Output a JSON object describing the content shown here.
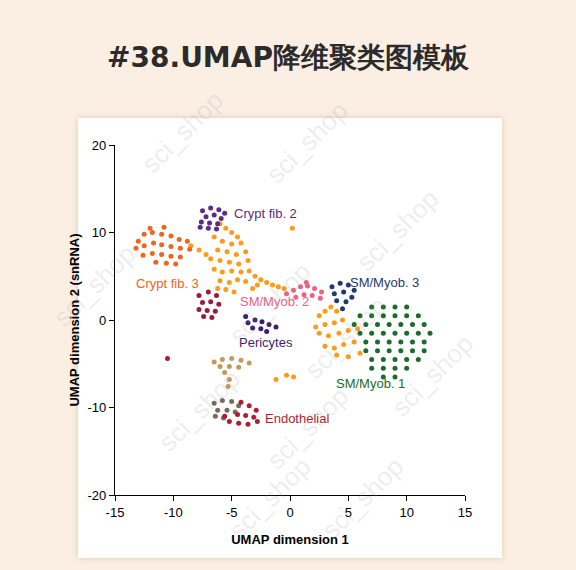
{
  "chart_data": {
    "type": "scatter",
    "title": "#38.UMAP降维聚类图模板",
    "watermark": "sci_shop",
    "x_label": "UMAP dimension 1",
    "y_label": "UMAP dimension 2 (snRNA)",
    "xlim": [
      -15,
      15
    ],
    "xticks": [
      -15,
      -10,
      -5,
      0,
      5,
      10,
      15
    ],
    "ylim": [
      -20,
      20
    ],
    "yticks": [
      -20,
      -10,
      0,
      10,
      20
    ],
    "grid": false,
    "marker": "circle",
    "series": [
      {
        "color": "#ff9a1a",
        "x": [
          -6,
          -5.5,
          -5,
          -4.5,
          -6.5,
          -5.8,
          -5,
          -4.2,
          -6.2,
          -5.4,
          -4.6,
          -3.8,
          -6.8,
          -6,
          -5.2,
          -4.4,
          -3.6,
          -8.5,
          -7.8,
          -7.2,
          -6.5,
          -5.8,
          -5,
          -4.2,
          -3.5,
          -6,
          -5.2,
          -4.5,
          -3.8,
          -3,
          -2.5,
          -2,
          -1.5,
          -1,
          -0.5,
          -5.5,
          -4.8,
          -6.2,
          -2.8,
          -3.2,
          2.5,
          3,
          3.5,
          4,
          3,
          3.8,
          4.5,
          2.5,
          3.3,
          4.2,
          5,
          3,
          3.8,
          4.6,
          5.5,
          4,
          5,
          6,
          2.2,
          5.8,
          -0.3,
          0.3,
          0.2,
          -1.2
        ],
        "y": [
          11,
          10.5,
          10,
          9.5,
          9.5,
          9,
          8.7,
          8.8,
          8,
          7.8,
          7.5,
          7.8,
          7,
          6.8,
          6.6,
          6.4,
          6.8,
          8.5,
          8,
          7.5,
          5.8,
          5.5,
          5.6,
          5.5,
          5.6,
          4.5,
          4.3,
          4.6,
          4.4,
          5,
          4.6,
          4.3,
          4,
          3.8,
          3.6,
          3.5,
          3.2,
          3.6,
          4,
          3.6,
          0.5,
          1,
          1.5,
          1,
          -0.5,
          -0.3,
          0,
          -1.5,
          -1.8,
          -1.5,
          -1.2,
          -3,
          -3.2,
          -2.8,
          -2.5,
          -4,
          -4.2,
          -3.8,
          -0.8,
          -1,
          -6.3,
          -6.5,
          10.5,
          -6.8
        ]
      },
      {
        "color": "#f0641e",
        "x": [
          -13,
          -12.5,
          -11.8,
          -11,
          -10.2,
          -9.5,
          -8.8,
          -13.2,
          -12.5,
          -11.7,
          -11,
          -10.2,
          -9.4,
          -8.6,
          -12.6,
          -11.8,
          -11,
          -10.2,
          -9.4,
          -11.5,
          -10.6,
          -9.8,
          -12,
          -10.8
        ],
        "y": [
          9,
          9.8,
          10,
          9.8,
          9.6,
          9.2,
          9,
          8.2,
          8.5,
          8.8,
          8.6,
          8.4,
          8.2,
          8.1,
          7.4,
          7.6,
          7.5,
          7.3,
          7.2,
          6.6,
          6.5,
          6.4,
          10.5,
          10.6
        ]
      },
      {
        "color": "#5b2c83",
        "x": [
          -7.5,
          -6.8,
          -6.1,
          -5.6,
          -7.2,
          -6.5,
          -5.9,
          -7.6,
          -6.9,
          -6.2,
          -7,
          -6.3,
          -7.7
        ],
        "y": [
          12.5,
          12.8,
          12.6,
          12.2,
          11.8,
          12,
          11.6,
          11.2,
          11.1,
          11,
          10.5,
          10.4,
          10.6
        ]
      },
      {
        "color": "#9e1a3a",
        "x": [
          -7.8,
          -7,
          -6.3,
          -7.5,
          -6.8,
          -6.1,
          -7.8,
          -7.1,
          -6.4,
          -7.4,
          -6.7
        ],
        "y": [
          2.8,
          3.2,
          2.8,
          2,
          2.1,
          1.8,
          1.2,
          1.1,
          1,
          0.4,
          0.3
        ]
      },
      {
        "color": "#f06080",
        "x": [
          -0.3,
          0.3,
          0.9,
          1.5,
          2.1,
          2.7,
          0.5,
          1.2,
          1.9,
          2.6,
          1.4
        ],
        "y": [
          3,
          3.4,
          3.8,
          3.9,
          3.6,
          3.2,
          2.6,
          2.9,
          2.8,
          2.5,
          4.3
        ]
      },
      {
        "color": "#1f3a6e",
        "x": [
          3.6,
          4.3,
          5,
          5.5,
          3.8,
          4.6,
          5.3,
          4,
          4.8,
          4.5
        ],
        "y": [
          3.8,
          4.2,
          4,
          3.4,
          3,
          3.2,
          2.6,
          2.2,
          2.1,
          1.3
        ]
      },
      {
        "color": "#1b6b2a",
        "x": [
          7,
          8,
          9,
          10,
          6,
          7,
          8,
          9,
          10,
          11,
          5.5,
          6.5,
          7.5,
          8.5,
          9.5,
          10.5,
          11.5,
          6,
          7,
          8,
          9,
          10,
          11,
          12,
          6.5,
          7.5,
          8.5,
          9.5,
          10.5,
          11.5,
          6.5,
          7.5,
          8.5,
          9.5,
          10.5,
          11.5,
          7,
          8,
          9,
          10,
          11,
          7,
          8,
          9,
          10,
          8,
          9
        ],
        "y": [
          1.5,
          1.5,
          1.5,
          1.5,
          0.5,
          0.5,
          0.5,
          0.5,
          0.5,
          0.5,
          -0.5,
          -0.5,
          -0.5,
          -0.5,
          -0.5,
          -0.5,
          -0.5,
          -1.5,
          -1.5,
          -1.5,
          -1.5,
          -1.5,
          -1.5,
          -1.5,
          -2.5,
          -2.5,
          -2.5,
          -2.5,
          -2.5,
          -2.5,
          -3.5,
          -3.5,
          -3.5,
          -3.5,
          -3.5,
          -3.5,
          -4.5,
          -4.5,
          -4.5,
          -4.5,
          -4.5,
          -5.5,
          -5.5,
          -5.5,
          -5.5,
          -6.5,
          -6.5
        ]
      },
      {
        "color": "#3d1f6e",
        "x": [
          -3.6,
          -3,
          -2.4,
          -1.8,
          -1.2,
          -3.2,
          -2.5,
          -2,
          -3.8
        ],
        "y": [
          -0.3,
          0,
          -0.2,
          -0.5,
          -0.8,
          -0.9,
          -1,
          -1.3,
          0.4
        ]
      },
      {
        "color": "#c49a5a",
        "x": [
          -6.5,
          -5.8,
          -5,
          -4.2,
          -3.5,
          -6,
          -5.2,
          -4.4,
          -5.6,
          -5.2,
          -5.3
        ],
        "y": [
          -4.8,
          -4.5,
          -4.4,
          -4.6,
          -4.9,
          -5.3,
          -5.3,
          -5.4,
          -6,
          -6.8,
          -7.6
        ]
      },
      {
        "color": "#7a6a5c",
        "x": [
          -6.5,
          -5.8,
          -5,
          -4.4,
          -6.2,
          -5.4,
          -4.7,
          -6.4,
          -5.7
        ],
        "y": [
          -9.5,
          -9.2,
          -9.3,
          -9.8,
          -10.3,
          -10.3,
          -10.5,
          -11,
          -11.2
        ]
      },
      {
        "color": "#b01c30",
        "x": [
          -4.2,
          -3.5,
          -2.9,
          -4.5,
          -3.8,
          -3.1,
          -5.2,
          -4.4,
          -3.6,
          -2.8,
          -5.6,
          -10.5
        ],
        "y": [
          -9.4,
          -9.8,
          -10.3,
          -10.8,
          -10.9,
          -11.1,
          -11.6,
          -11.8,
          -11.9,
          -11.6,
          -11,
          -4.4
        ]
      }
    ],
    "annotations": [
      {
        "text": "Crypt fib. 2",
        "x": -2.1,
        "y": 12.2,
        "color": "#5b2c83"
      },
      {
        "text": "Crypt fib. 3",
        "x": -10.5,
        "y": 4.2,
        "color": "#f0641e"
      },
      {
        "text": "SM/Myob. 2",
        "x": -1.3,
        "y": 2.1,
        "color": "#f06080"
      },
      {
        "text": "SM/Myob. 3",
        "x": 8.1,
        "y": 4.3,
        "color": "#1f3a6e"
      },
      {
        "text": "Pericytes",
        "x": -2.1,
        "y": -2.6,
        "color": "#3d1f6e"
      },
      {
        "text": "SM/Myob. 1",
        "x": 6.9,
        "y": -7.2,
        "color": "#1b6b2a"
      },
      {
        "text": "Endothelial",
        "x": 0.6,
        "y": -11.2,
        "color": "#b01c30"
      }
    ]
  }
}
